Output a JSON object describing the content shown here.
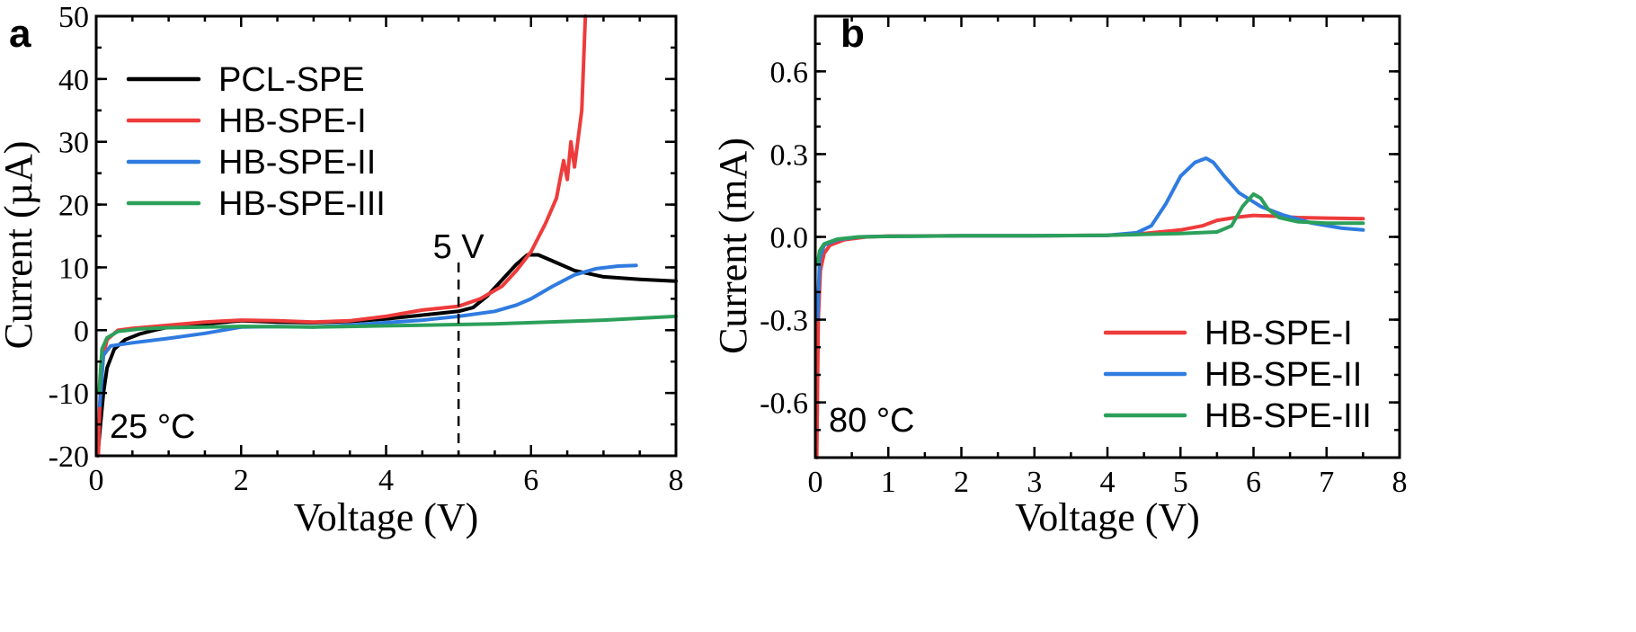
{
  "chart_data": [
    {
      "panel": "a",
      "type": "line",
      "xlabel": "Voltage (V)",
      "ylabel": "Current (µA)",
      "xlim": [
        0,
        8
      ],
      "ylim": [
        -20,
        50
      ],
      "xticks": [
        0,
        2,
        4,
        6,
        8
      ],
      "yticks": [
        -20,
        -10,
        0,
        10,
        20,
        30,
        40,
        50
      ],
      "xtick_labels": [
        "0",
        "2",
        "4",
        "6",
        "8"
      ],
      "ytick_labels": [
        "-20",
        "-10",
        "0",
        "10",
        "20",
        "30",
        "40",
        "50"
      ],
      "legend_position": "top-left",
      "grid": false,
      "annotations": [
        {
          "text": "5 V",
          "x": 5,
          "dashed_vertical_line": true
        },
        {
          "text": "25 °C",
          "position": "bottom-left"
        }
      ],
      "series": [
        {
          "name": "PCL-SPE",
          "color": "#000000",
          "points": [
            [
              0.02,
              -20
            ],
            [
              0.06,
              -15
            ],
            [
              0.1,
              -10
            ],
            [
              0.15,
              -6
            ],
            [
              0.25,
              -3
            ],
            [
              0.4,
              -1.5
            ],
            [
              0.6,
              -0.6
            ],
            [
              0.8,
              0
            ],
            [
              1.0,
              0.5
            ],
            [
              1.5,
              1
            ],
            [
              2.0,
              1.5
            ],
            [
              2.5,
              1.3
            ],
            [
              3.0,
              1.2
            ],
            [
              3.5,
              1.4
            ],
            [
              4.0,
              1.8
            ],
            [
              4.5,
              2.4
            ],
            [
              5.0,
              3
            ],
            [
              5.2,
              3.6
            ],
            [
              5.4,
              5.5
            ],
            [
              5.6,
              8
            ],
            [
              5.8,
              10.5
            ],
            [
              5.95,
              12
            ],
            [
              6.1,
              12
            ],
            [
              6.3,
              11
            ],
            [
              6.6,
              9.5
            ],
            [
              7.0,
              8.5
            ],
            [
              7.5,
              8.1
            ],
            [
              8.0,
              7.8
            ]
          ]
        },
        {
          "name": "HB-SPE-I",
          "color": "#ee3b3b",
          "points": [
            [
              0.03,
              -20
            ],
            [
              0.05,
              -12
            ],
            [
              0.08,
              -5
            ],
            [
              0.15,
              -1.5
            ],
            [
              0.3,
              0
            ],
            [
              0.5,
              0.3
            ],
            [
              1.0,
              0.8
            ],
            [
              1.5,
              1.3
            ],
            [
              2.0,
              1.6
            ],
            [
              2.5,
              1.5
            ],
            [
              3.0,
              1.3
            ],
            [
              3.5,
              1.5
            ],
            [
              4.0,
              2.2
            ],
            [
              4.5,
              3.2
            ],
            [
              5.0,
              3.8
            ],
            [
              5.3,
              5
            ],
            [
              5.6,
              7
            ],
            [
              5.8,
              9.5
            ],
            [
              6.0,
              12.5
            ],
            [
              6.2,
              17
            ],
            [
              6.35,
              21
            ],
            [
              6.45,
              27
            ],
            [
              6.5,
              24
            ],
            [
              6.55,
              30
            ],
            [
              6.6,
              26
            ],
            [
              6.7,
              35
            ],
            [
              6.75,
              50
            ]
          ]
        },
        {
          "name": "HB-SPE-II",
          "color": "#2f7be0",
          "points": [
            [
              0.05,
              -12
            ],
            [
              0.1,
              -4
            ],
            [
              0.2,
              -2.5
            ],
            [
              0.5,
              -2
            ],
            [
              1.0,
              -1.3
            ],
            [
              1.5,
              -0.5
            ],
            [
              2.0,
              0.5
            ],
            [
              2.5,
              0.6
            ],
            [
              3.0,
              0.5
            ],
            [
              3.5,
              0.8
            ],
            [
              4.0,
              1.2
            ],
            [
              4.5,
              1.6
            ],
            [
              5.0,
              2.2
            ],
            [
              5.5,
              3
            ],
            [
              5.8,
              4
            ],
            [
              6.0,
              5
            ],
            [
              6.3,
              7
            ],
            [
              6.6,
              8.8
            ],
            [
              6.9,
              9.8
            ],
            [
              7.2,
              10.2
            ],
            [
              7.45,
              10.3
            ]
          ]
        },
        {
          "name": "HB-SPE-III",
          "color": "#2ca05a",
          "points": [
            [
              0.04,
              -10
            ],
            [
              0.08,
              -3
            ],
            [
              0.15,
              -1.2
            ],
            [
              0.3,
              -0.2
            ],
            [
              0.6,
              0.2
            ],
            [
              1.0,
              0.4
            ],
            [
              1.5,
              0.5
            ],
            [
              2.0,
              0.6
            ],
            [
              2.5,
              0.55
            ],
            [
              3.0,
              0.5
            ],
            [
              3.5,
              0.6
            ],
            [
              4.0,
              0.7
            ],
            [
              4.5,
              0.8
            ],
            [
              5.0,
              0.9
            ],
            [
              5.5,
              1
            ],
            [
              6.0,
              1.2
            ],
            [
              6.5,
              1.4
            ],
            [
              7.0,
              1.6
            ],
            [
              7.5,
              1.9
            ],
            [
              8.0,
              2.2
            ]
          ]
        }
      ]
    },
    {
      "panel": "b",
      "type": "line",
      "xlabel": "Voltage (V)",
      "ylabel": "Current (mA)",
      "xlim": [
        0,
        8
      ],
      "ylim": [
        -0.8,
        0.8
      ],
      "xticks": [
        0,
        1,
        2,
        3,
        4,
        5,
        6,
        7,
        8
      ],
      "yticks": [
        -0.6,
        -0.3,
        0.0,
        0.3,
        0.6
      ],
      "xtick_labels": [
        "0",
        "1",
        "2",
        "3",
        "4",
        "5",
        "6",
        "7",
        "8"
      ],
      "ytick_labels": [
        "-0.6",
        "-0.3",
        "0.0",
        "0.3",
        "0.6"
      ],
      "legend_position": "bottom-right",
      "grid": false,
      "annotations": [
        {
          "text": "80 °C",
          "position": "bottom-left"
        }
      ],
      "series": [
        {
          "name": "HB-SPE-I",
          "color": "#ee3b3b",
          "points": [
            [
              0.02,
              -0.8
            ],
            [
              0.04,
              -0.3
            ],
            [
              0.07,
              -0.12
            ],
            [
              0.12,
              -0.06
            ],
            [
              0.2,
              -0.03
            ],
            [
              0.4,
              -0.01
            ],
            [
              0.7,
              0
            ],
            [
              1.0,
              0.003
            ],
            [
              2.0,
              0.004
            ],
            [
              3.0,
              0.004
            ],
            [
              4.0,
              0.006
            ],
            [
              4.5,
              0.012
            ],
            [
              5.0,
              0.025
            ],
            [
              5.3,
              0.04
            ],
            [
              5.5,
              0.06
            ],
            [
              5.8,
              0.072
            ],
            [
              6.0,
              0.078
            ],
            [
              6.3,
              0.075
            ],
            [
              6.6,
              0.07
            ],
            [
              7.0,
              0.068
            ],
            [
              7.5,
              0.066
            ]
          ]
        },
        {
          "name": "HB-SPE-II",
          "color": "#2f7be0",
          "points": [
            [
              0.03,
              -0.3
            ],
            [
              0.06,
              -0.08
            ],
            [
              0.12,
              -0.03
            ],
            [
              0.3,
              -0.01
            ],
            [
              0.6,
              0
            ],
            [
              1.0,
              0.002
            ],
            [
              2.0,
              0.004
            ],
            [
              3.0,
              0.004
            ],
            [
              4.0,
              0.006
            ],
            [
              4.4,
              0.015
            ],
            [
              4.6,
              0.04
            ],
            [
              4.8,
              0.12
            ],
            [
              5.0,
              0.22
            ],
            [
              5.2,
              0.27
            ],
            [
              5.35,
              0.285
            ],
            [
              5.45,
              0.27
            ],
            [
              5.6,
              0.22
            ],
            [
              5.8,
              0.16
            ],
            [
              6.1,
              0.11
            ],
            [
              6.4,
              0.08
            ],
            [
              6.8,
              0.05
            ],
            [
              7.2,
              0.032
            ],
            [
              7.5,
              0.025
            ]
          ]
        },
        {
          "name": "HB-SPE-III",
          "color": "#2ca05a",
          "points": [
            [
              0.03,
              -0.1
            ],
            [
              0.06,
              -0.05
            ],
            [
              0.12,
              -0.025
            ],
            [
              0.3,
              -0.008
            ],
            [
              0.6,
              0
            ],
            [
              1.0,
              0.002
            ],
            [
              2.0,
              0.004
            ],
            [
              3.0,
              0.004
            ],
            [
              4.0,
              0.006
            ],
            [
              5.0,
              0.012
            ],
            [
              5.5,
              0.018
            ],
            [
              5.7,
              0.04
            ],
            [
              5.85,
              0.11
            ],
            [
              6.0,
              0.155
            ],
            [
              6.1,
              0.14
            ],
            [
              6.2,
              0.1
            ],
            [
              6.35,
              0.07
            ],
            [
              6.6,
              0.055
            ],
            [
              7.0,
              0.05
            ],
            [
              7.5,
              0.05
            ]
          ]
        }
      ]
    }
  ]
}
